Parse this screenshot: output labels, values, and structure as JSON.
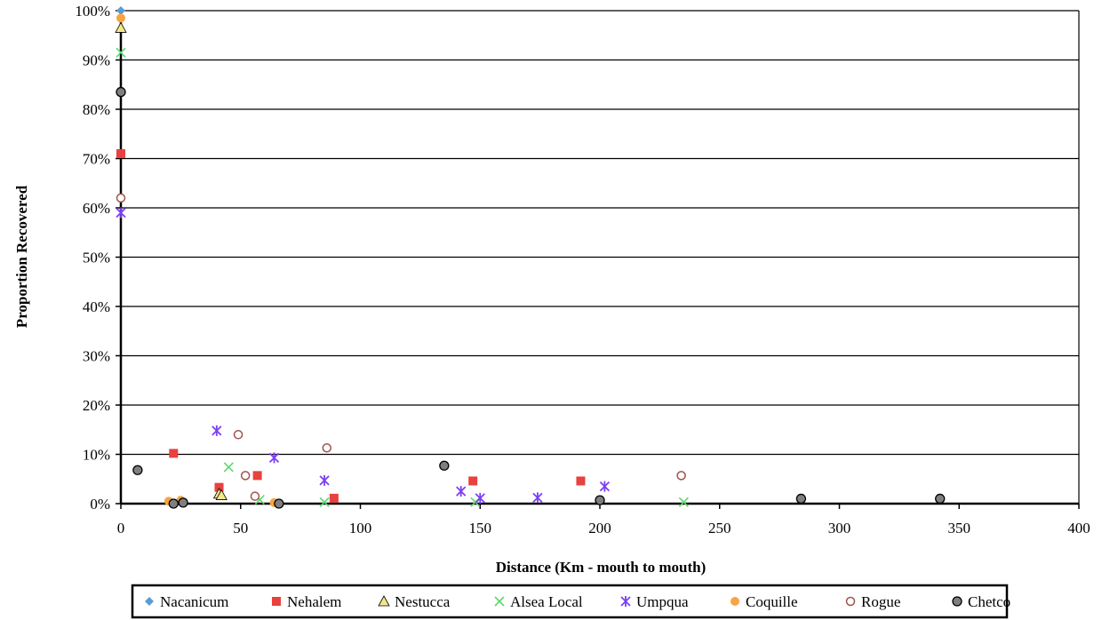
{
  "chart_data": {
    "type": "scatter",
    "title": "",
    "xlabel": "Distance (Km - mouth to mouth)",
    "ylabel": "Proportion Recovered",
    "xlim": [
      0,
      400
    ],
    "ylim": [
      0,
      1
    ],
    "x_ticks": [
      0,
      50,
      100,
      150,
      200,
      250,
      300,
      350,
      400
    ],
    "y_ticks": [
      0,
      0.1,
      0.2,
      0.3,
      0.4,
      0.5,
      0.6,
      0.7,
      0.8,
      0.9,
      1.0
    ],
    "x_tick_labels": [
      "0",
      "50",
      "100",
      "150",
      "200",
      "250",
      "300",
      "350",
      "400"
    ],
    "y_tick_labels": [
      "0%",
      "10%",
      "20%",
      "30%",
      "40%",
      "50%",
      "60%",
      "70%",
      "80%",
      "90%",
      "100%"
    ],
    "grid": "horizontal",
    "legend_position": "bottom",
    "series": [
      {
        "name": "Nacanicum",
        "marker": "diamond",
        "color": "#5b9bd5",
        "points": [
          [
            0,
            1.0
          ]
        ]
      },
      {
        "name": "Nehalem",
        "marker": "square",
        "color": "#e8413e",
        "points": [
          [
            0,
            0.71
          ],
          [
            22,
            0.102
          ],
          [
            41,
            0.033
          ],
          [
            57,
            0.057
          ],
          [
            89,
            0.011
          ],
          [
            147,
            0.046
          ],
          [
            192,
            0.046
          ]
        ]
      },
      {
        "name": "Nestucca",
        "marker": "triangle",
        "color": "#f2e88a",
        "points": [
          [
            0,
            0.965
          ],
          [
            41,
            0.02
          ],
          [
            42,
            0.017
          ]
        ]
      },
      {
        "name": "Alsea Local",
        "marker": "x",
        "color": "#5bd86b",
        "points": [
          [
            0,
            0.915
          ],
          [
            45,
            0.074
          ],
          [
            58,
            0.008
          ],
          [
            85,
            0.003
          ],
          [
            148,
            0.003
          ],
          [
            235,
            0.003
          ]
        ]
      },
      {
        "name": "Umpqua",
        "marker": "star",
        "color": "#7b3ff2",
        "points": [
          [
            0,
            0.59
          ],
          [
            40,
            0.148
          ],
          [
            64,
            0.093
          ],
          [
            85,
            0.047
          ],
          [
            142,
            0.025
          ],
          [
            150,
            0.011
          ],
          [
            174,
            0.012
          ],
          [
            202,
            0.035
          ]
        ]
      },
      {
        "name": "Coquille",
        "marker": "circle",
        "color": "#f7a443",
        "points": [
          [
            0,
            0.985
          ],
          [
            20,
            0.005
          ],
          [
            25,
            0.007
          ],
          [
            64,
            0.002
          ]
        ]
      },
      {
        "name": "Rogue",
        "marker": "open-circle",
        "color": "#a0524d",
        "points": [
          [
            0,
            0.62
          ],
          [
            49,
            0.14
          ],
          [
            52,
            0.057
          ],
          [
            56,
            0.015
          ],
          [
            86,
            0.113
          ],
          [
            234,
            0.057
          ]
        ]
      },
      {
        "name": "Chetco",
        "marker": "gray-circle",
        "color": "#7f7f7f",
        "points": [
          [
            0,
            0.835
          ],
          [
            7,
            0.068
          ],
          [
            22,
            0.0
          ],
          [
            26,
            0.002
          ],
          [
            66,
            0.0
          ],
          [
            135,
            0.077
          ],
          [
            200,
            0.007
          ],
          [
            284,
            0.01
          ],
          [
            342,
            0.01
          ]
        ]
      }
    ]
  }
}
